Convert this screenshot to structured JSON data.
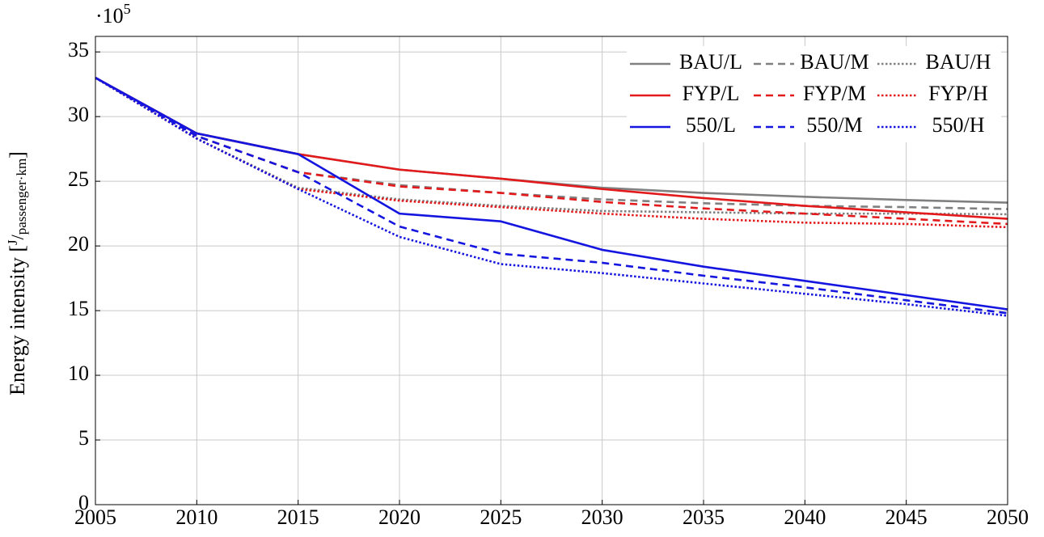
{
  "chart_data": {
    "type": "line",
    "y_multiplier": {
      "base": "·10",
      "exponent": "5"
    },
    "ylabel": {
      "text": "Energy intensity",
      "unit_numerator": "J",
      "unit_denominator": "passenger·km"
    },
    "x": [
      2005,
      2010,
      2015,
      2020,
      2025,
      2030,
      2035,
      2040,
      2045,
      2050
    ],
    "xlim": [
      2005,
      2050
    ],
    "xticks": [
      2005,
      2010,
      2015,
      2020,
      2025,
      2030,
      2035,
      2040,
      2045,
      2050
    ],
    "ylim": [
      0,
      36.2
    ],
    "yticks": [
      0,
      5,
      10,
      15,
      20,
      25,
      30,
      35
    ],
    "grid": true,
    "legend_position": "top-right",
    "legend_columns": 3,
    "series": [
      {
        "name": "BAU/L",
        "color": "#808080",
        "dash": "solid",
        "values": [
          33,
          28.7,
          27.1,
          25.9,
          25.2,
          24.5,
          24.1,
          23.8,
          23.55,
          23.35
        ]
      },
      {
        "name": "BAU/M",
        "color": "#808080",
        "dash": "dashed",
        "values": [
          33,
          28.5,
          25.7,
          24.7,
          24.1,
          23.6,
          23.3,
          23.1,
          23.0,
          22.85
        ]
      },
      {
        "name": "BAU/H",
        "color": "#808080",
        "dash": "dotted",
        "values": [
          33,
          28.3,
          24.5,
          23.6,
          23.1,
          22.7,
          22.6,
          22.5,
          22.5,
          22.45
        ]
      },
      {
        "name": "FYP/L",
        "color": "#e31a1c",
        "dash": "solid",
        "values": [
          33,
          28.7,
          27.1,
          25.9,
          25.2,
          24.4,
          23.7,
          23.1,
          22.6,
          22.1
        ]
      },
      {
        "name": "FYP/M",
        "color": "#e31a1c",
        "dash": "dashed",
        "values": [
          33,
          28.5,
          25.7,
          24.6,
          24.1,
          23.4,
          22.9,
          22.5,
          22.1,
          21.7
        ]
      },
      {
        "name": "FYP/H",
        "color": "#e31a1c",
        "dash": "dotted",
        "values": [
          33,
          28.3,
          24.4,
          23.5,
          23.0,
          22.5,
          22.1,
          21.8,
          21.7,
          21.45
        ]
      },
      {
        "name": "550/L",
        "color": "#1515e0",
        "dash": "solid",
        "values": [
          33,
          28.7,
          27.1,
          22.5,
          21.9,
          19.7,
          18.4,
          17.3,
          16.2,
          15.1
        ]
      },
      {
        "name": "550/M",
        "color": "#1515e0",
        "dash": "dashed",
        "values": [
          33,
          28.5,
          25.7,
          21.5,
          19.4,
          18.7,
          17.7,
          16.8,
          15.8,
          14.8
        ]
      },
      {
        "name": "550/H",
        "color": "#1515e0",
        "dash": "dotted",
        "values": [
          33,
          28.3,
          24.4,
          20.7,
          18.6,
          17.9,
          17.1,
          16.3,
          15.5,
          14.6
        ]
      }
    ]
  }
}
